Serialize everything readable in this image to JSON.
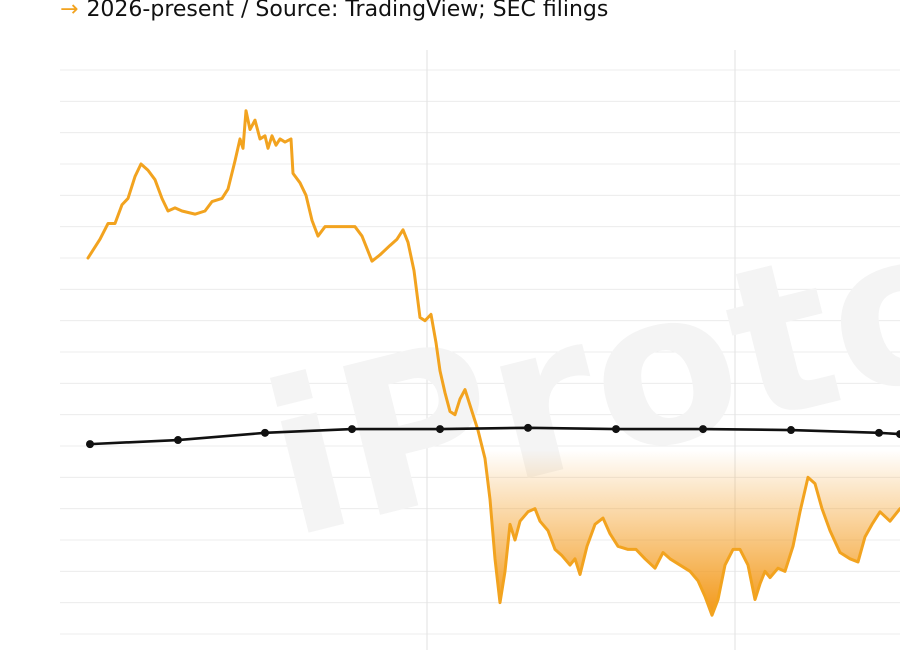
{
  "chart_data": {
    "type": "line",
    "arrow": "→",
    "subtitle": "2026-present / Source: TradingView; SEC filings",
    "watermark": "iProto",
    "xlim": [
      0,
      84
    ],
    "xticks": [
      36.7,
      67.5
    ],
    "ylim": [
      0,
      18
    ],
    "yticks": [
      0,
      1,
      2,
      3,
      4,
      5,
      6,
      7,
      8,
      9,
      10,
      11,
      12,
      13,
      14,
      15,
      16,
      17,
      18
    ],
    "grid": true,
    "series": [
      {
        "color": "#f2a31f",
        "x": [
          2.8,
          4,
          4.8,
          5.5,
          6.2,
          6.8,
          7.5,
          8.1,
          8.8,
          9.5,
          10.2,
          10.8,
          11.5,
          12.2,
          13.5,
          14.5,
          15.2,
          16.2,
          16.8,
          17.5,
          18,
          18.3,
          18.6,
          19,
          19.5,
          20,
          20.5,
          20.8,
          21.2,
          21.6,
          22,
          22.5,
          23.1,
          23.3,
          24,
          24.6,
          25.2,
          25.8,
          26.5,
          28,
          29.5,
          30.2,
          31.2,
          32,
          33,
          33.7,
          34.3,
          34.8,
          35.4,
          36,
          36.5,
          37.1,
          37.6,
          38,
          38.5,
          39,
          39.5,
          40,
          40.5,
          41,
          41.8,
          42.5,
          43,
          43.5,
          44,
          44.5,
          45,
          45.5,
          46,
          46.8,
          47.5,
          48,
          48.8,
          49.5,
          50.2,
          51,
          51.5,
          52,
          52.7,
          53.5,
          54.3,
          55,
          55.8,
          56.8,
          57.6,
          58.5,
          59.5,
          60.3,
          61,
          62,
          63,
          63.8,
          64.5,
          65.2,
          65.8,
          66.5,
          67.3,
          68,
          68.8,
          69.5,
          70,
          70.5,
          71,
          71.8,
          72.5,
          73.3,
          74,
          74.8,
          75.5,
          76.2,
          77,
          78,
          79,
          79.8,
          80.5,
          81.2,
          82,
          83,
          84
        ],
        "values": [
          12.0,
          12.6,
          13.1,
          13.1,
          13.7,
          13.9,
          14.6,
          15.0,
          14.8,
          14.5,
          13.9,
          13.5,
          13.6,
          13.5,
          13.4,
          13.5,
          13.8,
          13.9,
          14.2,
          15.1,
          15.8,
          15.5,
          16.7,
          16.1,
          16.4,
          15.8,
          15.9,
          15.5,
          15.9,
          15.6,
          15.8,
          15.7,
          15.8,
          14.7,
          14.4,
          14.0,
          13.2,
          12.7,
          13.0,
          13.0,
          13.0,
          12.7,
          11.9,
          12.1,
          12.4,
          12.6,
          12.9,
          12.5,
          11.6,
          10.1,
          10.0,
          10.2,
          9.3,
          8.4,
          7.7,
          7.1,
          7.0,
          7.5,
          7.8,
          7.3,
          6.5,
          5.6,
          4.3,
          2.4,
          1.0,
          2.0,
          3.5,
          3.0,
          3.6,
          3.9,
          4.0,
          3.6,
          3.3,
          2.7,
          2.5,
          2.2,
          2.4,
          1.9,
          2.8,
          3.5,
          3.7,
          3.2,
          2.8,
          2.7,
          2.7,
          2.4,
          2.1,
          2.6,
          2.4,
          2.2,
          2.0,
          1.7,
          1.2,
          0.6,
          1.1,
          2.2,
          2.7,
          2.7,
          2.2,
          1.1,
          1.6,
          2.0,
          1.8,
          2.1,
          2.0,
          2.8,
          3.9,
          5.0,
          4.8,
          4.0,
          3.3,
          2.6,
          2.4,
          2.3,
          3.1,
          3.5,
          3.9,
          3.6,
          4.0
        ]
      },
      {
        "color": "#111111",
        "markers": true,
        "x": [
          3,
          11.8,
          20.5,
          29.2,
          38,
          46.8,
          55.6,
          64.3,
          73.1,
          81.9,
          84
        ],
        "values": [
          6.06,
          6.19,
          6.42,
          6.54,
          6.54,
          6.58,
          6.54,
          6.54,
          6.51,
          6.42,
          6.38
        ]
      }
    ],
    "fill_below": {
      "color": "#f39a1c"
    }
  }
}
